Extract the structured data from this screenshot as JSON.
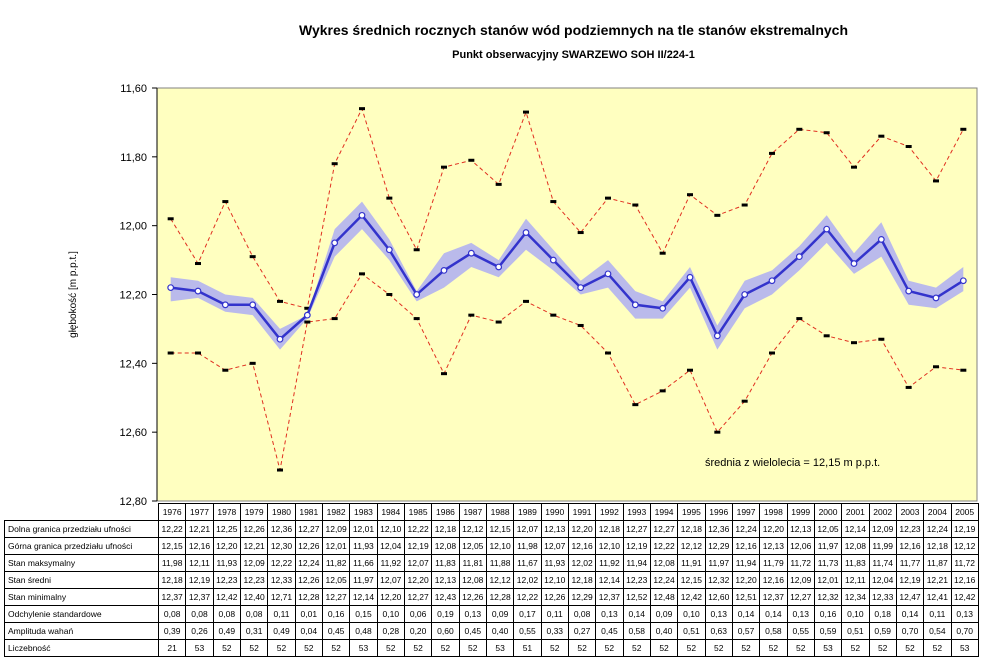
{
  "title": "Wykres średnich rocznych stanów wód podziemnych na tle stanów ekstremalnych",
  "subtitle": "Punkt obserwacyjny SWARZEWO SOH II/224-1",
  "colors": {
    "plot_bg": "#FFFFC0",
    "mean_line": "#3333CC",
    "confidence_band": "#B3B3F0",
    "extreme_line": "#E03020"
  },
  "chart_data": {
    "type": "line",
    "title": "Wykres średnich rocznych stanów wód podziemnych na tle stanów ekstremalnych",
    "subtitle": "Punkt obserwacyjny SWARZEWO SOH II/224-1",
    "ylabel": "głębokość [m p.p.t.]",
    "ylim": [
      11.6,
      12.8
    ],
    "y_inverted": true,
    "yticks": [
      "11,60",
      "11,80",
      "12,00",
      "12,20",
      "12,40",
      "12,60",
      "12,80"
    ],
    "x": [
      "1976",
      "1977",
      "1978",
      "1979",
      "1980",
      "1981",
      "1982",
      "1983",
      "1984",
      "1985",
      "1986",
      "1987",
      "1988",
      "1989",
      "1990",
      "1991",
      "1992",
      "1993",
      "1994",
      "1995",
      "1996",
      "1997",
      "1998",
      "1999",
      "2000",
      "2001",
      "2002",
      "2003",
      "2004",
      "2005"
    ],
    "annotation": "średnia z wielolecia = 12,15 m p.p.t.",
    "series": [
      {
        "key": "lower",
        "label": "Dolna granica przedziału ufności",
        "display": [
          "12,22",
          "12,21",
          "12,25",
          "12,26",
          "12,36",
          "12,27",
          "12,09",
          "12,01",
          "12,10",
          "12,22",
          "12,18",
          "12,12",
          "12,15",
          "12,07",
          "12,13",
          "12,20",
          "12,18",
          "12,27",
          "12,27",
          "12,18",
          "12,36",
          "12,24",
          "12,20",
          "12,13",
          "12,05",
          "12,14",
          "12,09",
          "12,23",
          "12,24",
          "12,19"
        ]
      },
      {
        "key": "upper",
        "label": "Górna granica przedziału ufności",
        "display": [
          "12,15",
          "12,16",
          "12,20",
          "12,21",
          "12,30",
          "12,26",
          "12,01",
          "11,93",
          "12,04",
          "12,19",
          "12,08",
          "12,05",
          "12,10",
          "11,98",
          "12,07",
          "12,16",
          "12,10",
          "12,19",
          "12,22",
          "12,12",
          "12,29",
          "12,16",
          "12,13",
          "12,06",
          "11,97",
          "12,08",
          "11,99",
          "12,16",
          "12,18",
          "12,12"
        ]
      },
      {
        "key": "max",
        "label": "Stan maksymalny",
        "display": [
          "11,98",
          "12,11",
          "11,93",
          "12,09",
          "12,22",
          "12,24",
          "11,82",
          "11,66",
          "11,92",
          "12,07",
          "11,83",
          "11,81",
          "11,88",
          "11,67",
          "11,93",
          "12,02",
          "11,92",
          "11,94",
          "12,08",
          "11,91",
          "11,97",
          "11,94",
          "11,79",
          "11,72",
          "11,73",
          "11,83",
          "11,74",
          "11,77",
          "11,87",
          "11,72"
        ]
      },
      {
        "key": "mean",
        "label": "Stan średni",
        "display": [
          "12,18",
          "12,19",
          "12,23",
          "12,23",
          "12,33",
          "12,26",
          "12,05",
          "11,97",
          "12,07",
          "12,20",
          "12,13",
          "12,08",
          "12,12",
          "12,02",
          "12,10",
          "12,18",
          "12,14",
          "12,23",
          "12,24",
          "12,15",
          "12,32",
          "12,20",
          "12,16",
          "12,09",
          "12,01",
          "12,11",
          "12,04",
          "12,19",
          "12,21",
          "12,16"
        ]
      },
      {
        "key": "min",
        "label": "Stan minimalny",
        "display": [
          "12,37",
          "12,37",
          "12,42",
          "12,40",
          "12,71",
          "12,28",
          "12,27",
          "12,14",
          "12,20",
          "12,27",
          "12,43",
          "12,26",
          "12,28",
          "12,22",
          "12,26",
          "12,29",
          "12,37",
          "12,52",
          "12,48",
          "12,42",
          "12,60",
          "12,51",
          "12,37",
          "12,27",
          "12,32",
          "12,34",
          "12,33",
          "12,47",
          "12,41",
          "12,42"
        ]
      },
      {
        "key": "std",
        "label": "Odchylenie standardowe",
        "display": [
          "0,08",
          "0,08",
          "0,08",
          "0,08",
          "0,11",
          "0,01",
          "0,16",
          "0,15",
          "0,10",
          "0,06",
          "0,19",
          "0,13",
          "0,09",
          "0,17",
          "0,11",
          "0,08",
          "0,13",
          "0,14",
          "0,09",
          "0,10",
          "0,13",
          "0,14",
          "0,14",
          "0,13",
          "0,16",
          "0,10",
          "0,18",
          "0,14",
          "0,11",
          "0,13"
        ]
      },
      {
        "key": "amp",
        "label": "Amplituda wahań",
        "display": [
          "0,39",
          "0,26",
          "0,49",
          "0,31",
          "0,49",
          "0,04",
          "0,45",
          "0,48",
          "0,28",
          "0,20",
          "0,60",
          "0,45",
          "0,40",
          "0,55",
          "0,33",
          "0,27",
          "0,45",
          "0,58",
          "0,40",
          "0,51",
          "0,63",
          "0,57",
          "0,58",
          "0,55",
          "0,59",
          "0,51",
          "0,59",
          "0,70",
          "0,54",
          "0,70"
        ]
      },
      {
        "key": "count",
        "label": "Liczebność",
        "display": [
          "21",
          "53",
          "52",
          "52",
          "52",
          "52",
          "52",
          "53",
          "52",
          "52",
          "52",
          "52",
          "53",
          "51",
          "52",
          "52",
          "52",
          "52",
          "52",
          "52",
          "52",
          "52",
          "52",
          "52",
          "53",
          "52",
          "52",
          "52",
          "52",
          "53"
        ]
      }
    ]
  }
}
